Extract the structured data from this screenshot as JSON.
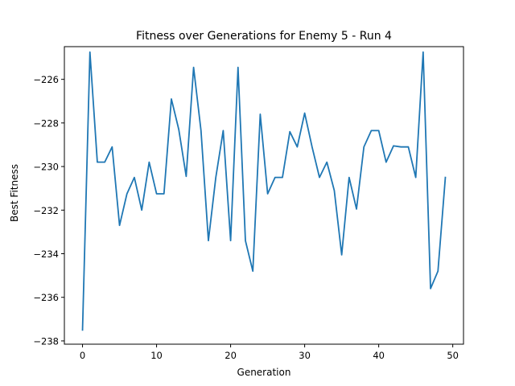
{
  "chart_data": {
    "type": "line",
    "title": "Fitness over Generations for Enemy 5 - Run 4",
    "xlabel": "Generation",
    "ylabel": "Best Fitness",
    "xlim": [
      -2.45,
      51.45
    ],
    "ylim": [
      -238.15,
      -224.5
    ],
    "xticks": [
      0,
      10,
      20,
      30,
      40,
      50
    ],
    "yticks": [
      -238,
      -236,
      -234,
      -232,
      -230,
      -228,
      -226
    ],
    "grid": false,
    "line_color": "#1f77b4",
    "series": [
      {
        "x": [
          0,
          1,
          2,
          3,
          4,
          5,
          6,
          7,
          8,
          9,
          10,
          11,
          12,
          13,
          14,
          15,
          16,
          17,
          18,
          19,
          20,
          21,
          22,
          23,
          24,
          25,
          26,
          27,
          28,
          29,
          30,
          31,
          32,
          33,
          34,
          35,
          36,
          37,
          38,
          39,
          40,
          41,
          42,
          43,
          44,
          45,
          46,
          47,
          48,
          49
        ],
        "values": [
          -237.5,
          -224.75,
          -229.8,
          -229.8,
          -229.1,
          -232.7,
          -231.25,
          -230.5,
          -232.0,
          -229.8,
          -231.25,
          -231.25,
          -226.9,
          -228.3,
          -230.45,
          -225.45,
          -228.35,
          -233.4,
          -230.5,
          -228.35,
          -233.4,
          -225.45,
          -233.4,
          -234.8,
          -227.6,
          -231.25,
          -230.5,
          -230.5,
          -228.4,
          -229.1,
          -227.55,
          -229.1,
          -230.5,
          -229.8,
          -231.1,
          -234.05,
          -230.5,
          -231.95,
          -229.1,
          -228.35,
          -228.35,
          -229.8,
          -229.05,
          -229.1,
          -229.1,
          -230.5,
          -224.75,
          -235.6,
          -234.8,
          -230.5
        ]
      }
    ]
  }
}
